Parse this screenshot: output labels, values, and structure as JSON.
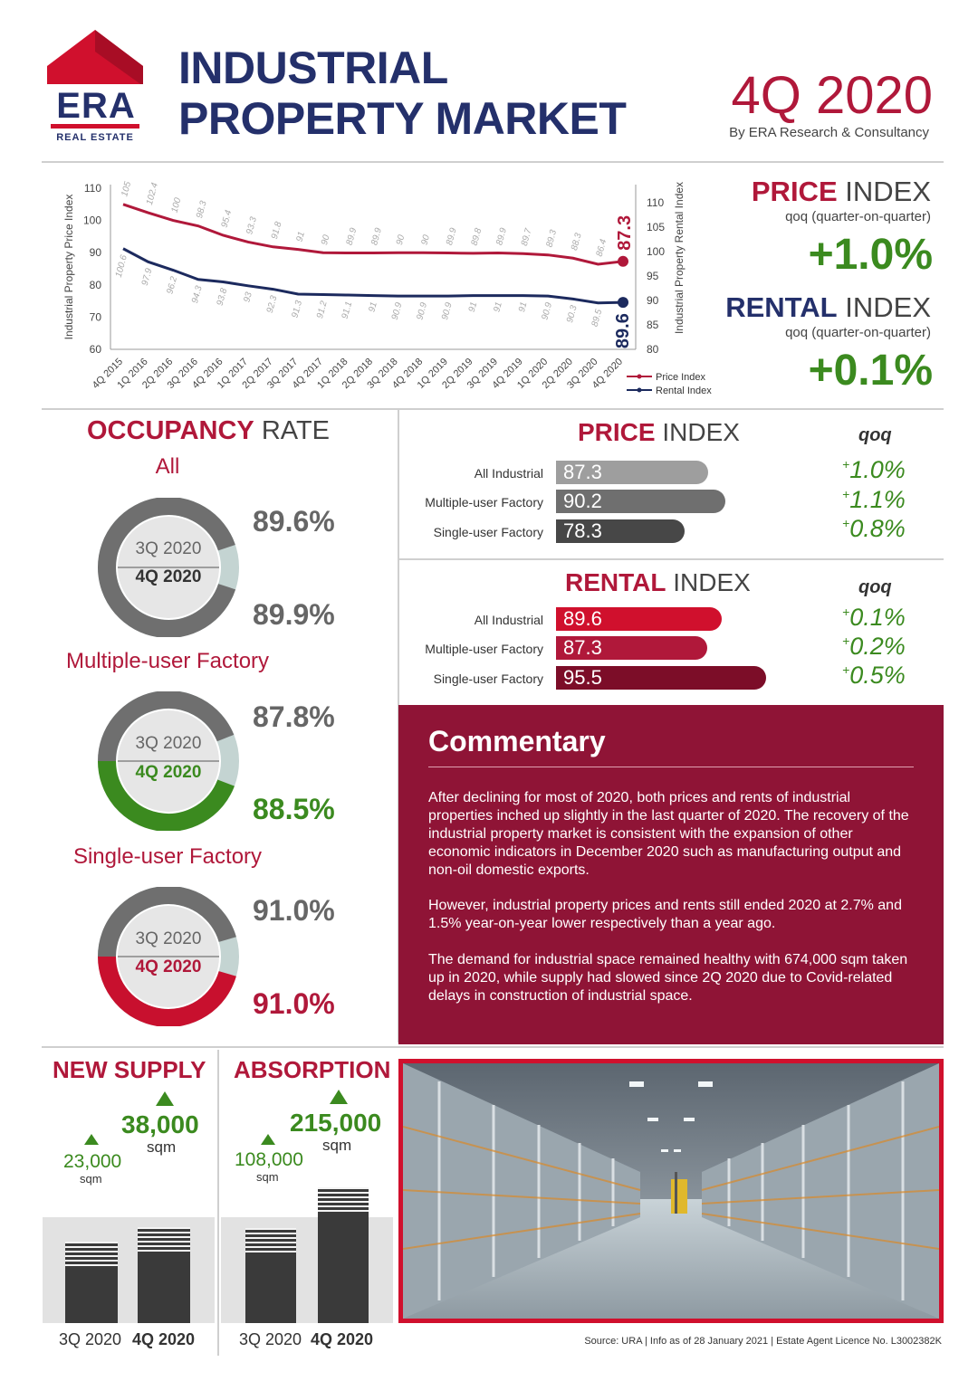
{
  "brand": {
    "name": "ERA",
    "tagline": "REAL ESTATE",
    "color_red": "#d0102d",
    "color_navy": "#24306b"
  },
  "header": {
    "title_line1": "INDUSTRIAL",
    "title_line2": "PROPERTY MARKET",
    "period": "4Q 2020",
    "byline": "By ERA Research & Consultancy"
  },
  "summary": {
    "price": {
      "word1": "PRICE",
      "word2": "INDEX",
      "sub": "qoq (quarter-on-quarter)",
      "value": "+1.0%"
    },
    "rental": {
      "word1": "RENTAL",
      "word2": "INDEX",
      "sub": "qoq (quarter-on-quarter)",
      "value": "+0.1%"
    }
  },
  "chart_data": [
    {
      "type": "line",
      "x": [
        "4Q 2015",
        "1Q 2016",
        "2Q 2016",
        "3Q 2016",
        "4Q 2016",
        "1Q 2017",
        "2Q 2017",
        "3Q 2017",
        "4Q 2017",
        "1Q 2018",
        "2Q 2018",
        "3Q 2018",
        "4Q 2018",
        "1Q 2019",
        "2Q 2019",
        "3Q 2019",
        "4Q 2019",
        "1Q 2020",
        "2Q 2020",
        "3Q 2020",
        "4Q 2020"
      ],
      "series": [
        {
          "name": "Price Index",
          "axis": "left",
          "color": "#b0183a",
          "values": [
            105,
            102.4,
            100,
            98.3,
            95.4,
            93.3,
            91.8,
            91,
            90,
            89.9,
            89.9,
            90,
            90,
            89.9,
            89.8,
            89.9,
            89.7,
            89.3,
            88.3,
            86.4,
            87.3
          ],
          "labels": [
            "105",
            "102.4",
            "100",
            "98.3",
            "95.4",
            "93.3",
            "91.8",
            "91",
            "90",
            "89.9",
            "89.9",
            "90",
            "90",
            "89.9",
            "89.8",
            "89.9",
            "89.7",
            "89.3",
            "88.3",
            "86.4",
            "87.3"
          ]
        },
        {
          "name": "Rental Index",
          "axis": "right",
          "color": "#1c2a5e",
          "values": [
            100.6,
            97.9,
            96.2,
            94.3,
            93.8,
            93,
            92.3,
            91.3,
            91.2,
            91.1,
            91,
            90.9,
            90.9,
            90.9,
            91,
            91,
            91,
            90.9,
            90.3,
            89.5,
            89.6
          ],
          "labels": [
            "100.6",
            "97.9",
            "96.2",
            "94.3",
            "93.8",
            "93",
            "92.3",
            "91.3",
            "91.2",
            "91.1",
            "91",
            "90.9",
            "90.9",
            "90.9",
            "91",
            "91",
            "91",
            "90.9",
            "90.3",
            "89.5",
            "89.6"
          ]
        }
      ],
      "ylabel": "Industrial Property Price Index",
      "ylabel_right": "Industrial Property Rental Index",
      "ylim": [
        60,
        110
      ],
      "ylim_right": [
        80,
        110
      ],
      "yticks": [
        "110",
        "100",
        "90",
        "80",
        "70",
        "60"
      ],
      "yticks_right": [
        "110",
        "105",
        "100",
        "95",
        "90",
        "85",
        "80"
      ],
      "grid": false,
      "legend": "bottom-right"
    },
    {
      "type": "bar",
      "title": "PRICE INDEX",
      "categories": [
        "All Industrial",
        "Multiple-user Factory",
        "Single-user Factory"
      ],
      "values": [
        87.3,
        90.2,
        78.3
      ],
      "labels": [
        "87.3",
        "90.2",
        "78.3"
      ],
      "colors": [
        "#9e9e9e",
        "#6f6f6f",
        "#474747"
      ],
      "qoq_header": "qoq",
      "qoq": [
        "1.0%",
        "1.1%",
        "0.8%"
      ]
    },
    {
      "type": "bar",
      "title": "RENTAL INDEX",
      "categories": [
        "All Industrial",
        "Multiple-user Factory",
        "Single-user Factory"
      ],
      "values": [
        89.6,
        87.3,
        95.5
      ],
      "labels": [
        "89.6",
        "87.3",
        "95.5"
      ],
      "colors": [
        "#d0102d",
        "#b0183a",
        "#7c0d28"
      ],
      "qoq_header": "qoq",
      "qoq": [
        "0.1%",
        "0.2%",
        "0.5%"
      ]
    },
    {
      "type": "bar",
      "title": "NEW SUPPLY",
      "categories": [
        "3Q 2020",
        "4Q 2020"
      ],
      "values": [
        23000,
        38000
      ],
      "labels": [
        "23,000",
        "38,000"
      ],
      "unit": "sqm"
    },
    {
      "type": "bar",
      "title": "ABSORPTION",
      "categories": [
        "3Q 2020",
        "4Q 2020"
      ],
      "values": [
        108000,
        215000
      ],
      "labels": [
        "108,000",
        "215,000"
      ],
      "unit": "sqm"
    }
  ],
  "price_index_panel": {
    "word1": "PRICE",
    "word2": "INDEX"
  },
  "rental_index_panel": {
    "word1": "RENTAL",
    "word2": "INDEX"
  },
  "occupancy": {
    "word1": "OCCUPANCY",
    "word2": "RATE",
    "groups": [
      {
        "name": "All",
        "q_prev": "3Q 2020",
        "q_curr": "4Q 2020",
        "prev": "89.6%",
        "curr": "89.9%",
        "prev_frac": 0.896,
        "curr_frac": 0.899,
        "accent": "#6f6f6f",
        "curr_color": "#333333"
      },
      {
        "name": "Multiple-user Factory",
        "q_prev": "3Q 2020",
        "q_curr": "4Q 2020",
        "prev": "87.8%",
        "curr": "88.5%",
        "prev_frac": 0.878,
        "curr_frac": 0.885,
        "accent": "#3b8a1f",
        "curr_color": "#3b8a1f"
      },
      {
        "name": "Single-user Factory",
        "q_prev": "3Q 2020",
        "q_curr": "4Q 2020",
        "prev": "91.0%",
        "curr": "91.0%",
        "prev_frac": 0.91,
        "curr_frac": 0.91,
        "accent": "#c8102e",
        "curr_color": "#b0183a"
      }
    ]
  },
  "commentary": {
    "title": "Commentary",
    "p1": "After declining for most of 2020, both prices and rents of industrial properties inched up slightly in the last quarter of 2020. The recovery of the industrial property market is consistent with the expansion of other economic indicators in December 2020 such as manufacturing output and non-oil domestic exports.",
    "p2": "However, industrial property prices and rents still ended 2020 at 2.7% and 1.5% year-on-year lower respectively than a year ago.",
    "p3": "The demand for industrial space remained healthy with 674,000 sqm taken up in 2020, while supply had slowed since 2Q 2020 due to Covid-related delays in construction of industrial space."
  },
  "footer": {
    "source": "Source: URA | Info as of 28 January 2021 | Estate Agent Licence No. L3002382K"
  }
}
